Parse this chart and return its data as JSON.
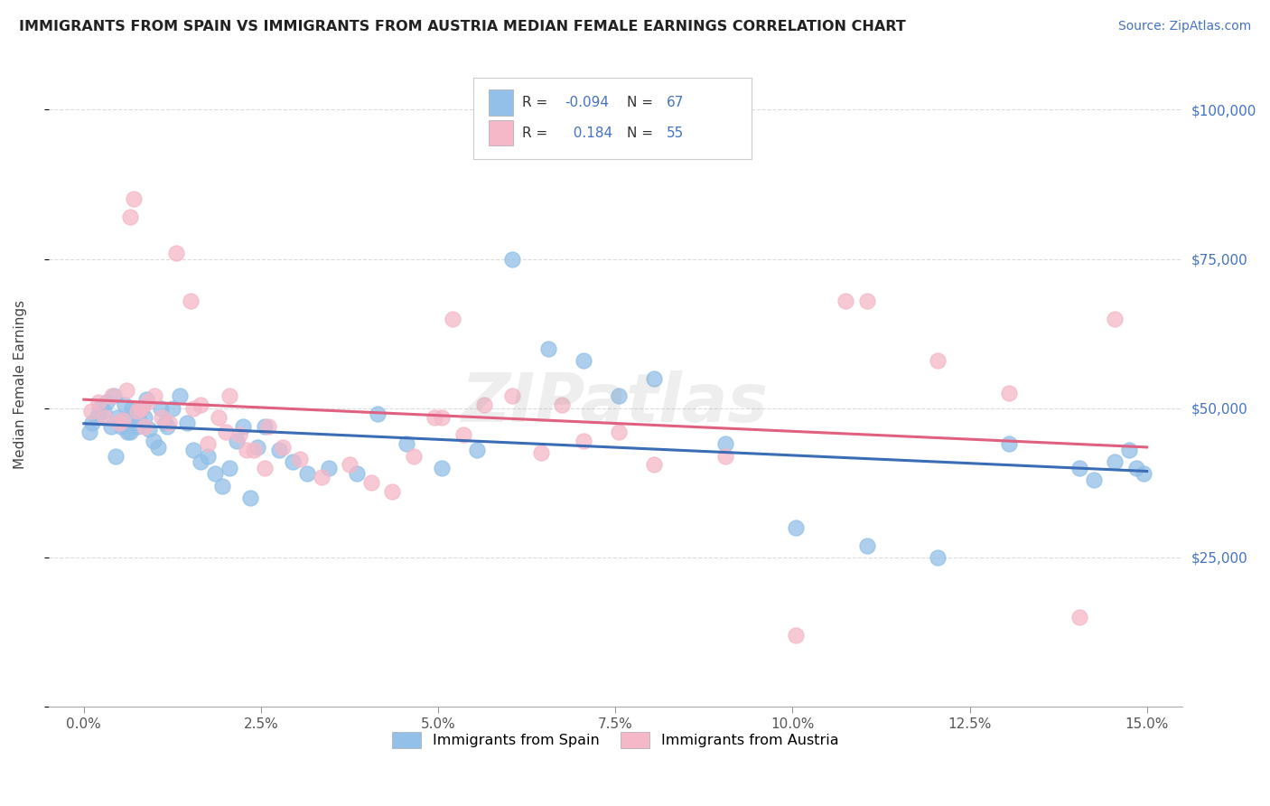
{
  "title": "IMMIGRANTS FROM SPAIN VS IMMIGRANTS FROM AUSTRIA MEDIAN FEMALE EARNINGS CORRELATION CHART",
  "source": "Source: ZipAtlas.com",
  "ylabel": "Median Female Earnings",
  "xlabel_ticks": [
    "0.0%",
    "2.5%",
    "5.0%",
    "7.5%",
    "10.0%",
    "12.5%",
    "15.0%"
  ],
  "xlabel_vals": [
    0.0,
    2.5,
    5.0,
    7.5,
    10.0,
    12.5,
    15.0
  ],
  "ytick_vals": [
    0,
    25000,
    50000,
    75000,
    100000
  ],
  "ytick_labels": [
    "",
    "$25,000",
    "$50,000",
    "$75,000",
    "$100,000"
  ],
  "xlim": [
    -0.5,
    15.5
  ],
  "ylim": [
    8000,
    108000
  ],
  "blue_color": "#92C0E8",
  "pink_color": "#F5B8C8",
  "blue_line_color": "#3A6DB5",
  "pink_line_color": "#E06080",
  "R_spain": -0.094,
  "N_spain": 67,
  "R_austria": 0.184,
  "N_austria": 55,
  "legend_label_spain": "Immigrants from Spain",
  "legend_label_austria": "Immigrants from Austria",
  "stat_color": "#4472C4",
  "background_color": "#FFFFFF",
  "grid_color": "#CCCCCC",
  "title_color": "#222222",
  "source_color": "#4472C4",
  "watermark": "ZIPatlas",
  "spain_x": [
    0.08,
    0.12,
    0.18,
    0.22,
    0.28,
    0.32,
    0.38,
    0.42,
    0.48,
    0.52,
    0.58,
    0.62,
    0.68,
    0.72,
    0.78,
    0.82,
    0.88,
    0.92,
    0.98,
    1.05,
    1.15,
    1.25,
    1.35,
    1.45,
    1.55,
    1.65,
    1.75,
    1.85,
    1.95,
    2.05,
    2.15,
    2.25,
    2.45,
    2.55,
    2.75,
    2.95,
    3.15,
    3.45,
    3.85,
    4.15,
    4.55,
    5.05,
    5.55,
    6.05,
    6.55,
    7.05,
    7.55,
    8.05,
    9.05,
    10.05,
    11.05,
    12.05,
    13.05,
    14.05,
    14.25,
    14.55,
    14.75,
    14.85,
    14.95,
    2.35,
    1.08,
    1.18,
    0.45,
    0.55,
    0.65,
    0.75,
    0.85
  ],
  "spain_y": [
    46000,
    47500,
    48500,
    50000,
    49500,
    51000,
    47000,
    52000,
    48500,
    47000,
    50500,
    46000,
    50000,
    49000,
    48000,
    50000,
    51500,
    46500,
    44500,
    43500,
    47500,
    50000,
    52000,
    47500,
    43000,
    41000,
    42000,
    39000,
    37000,
    40000,
    44500,
    47000,
    43500,
    47000,
    43000,
    41000,
    39000,
    40000,
    39000,
    49000,
    44000,
    40000,
    43000,
    75000,
    60000,
    58000,
    52000,
    55000,
    44000,
    30000,
    27000,
    25000,
    44000,
    40000,
    38000,
    41000,
    43000,
    40000,
    39000,
    35000,
    50000,
    47000,
    42000,
    48000,
    46000,
    47000,
    48500
  ],
  "austria_x": [
    0.1,
    0.2,
    0.3,
    0.4,
    0.5,
    0.6,
    0.65,
    0.7,
    0.75,
    0.8,
    0.9,
    1.0,
    1.1,
    1.2,
    1.3,
    1.5,
    1.65,
    1.9,
    2.05,
    2.2,
    2.4,
    2.6,
    2.8,
    3.05,
    3.35,
    3.75,
    4.05,
    4.35,
    4.65,
    5.05,
    5.35,
    5.65,
    6.05,
    6.45,
    6.75,
    7.05,
    7.55,
    8.05,
    9.05,
    10.05,
    11.05,
    12.05,
    13.05,
    14.05,
    14.55,
    0.55,
    0.85,
    1.55,
    1.75,
    2.0,
    2.3,
    2.55,
    4.95,
    5.2,
    10.75
  ],
  "austria_y": [
    49500,
    51000,
    48500,
    52000,
    47500,
    53000,
    82000,
    85000,
    49500,
    50000,
    51000,
    52000,
    48500,
    47500,
    76000,
    68000,
    50500,
    48500,
    52000,
    45500,
    43000,
    47000,
    43500,
    41500,
    38500,
    40500,
    37500,
    36000,
    42000,
    48500,
    45500,
    50500,
    52000,
    42500,
    50500,
    44500,
    46000,
    40500,
    42000,
    12000,
    68000,
    58000,
    52500,
    15000,
    65000,
    48000,
    47000,
    50000,
    44000,
    46000,
    43000,
    40000,
    48500,
    65000,
    68000
  ]
}
